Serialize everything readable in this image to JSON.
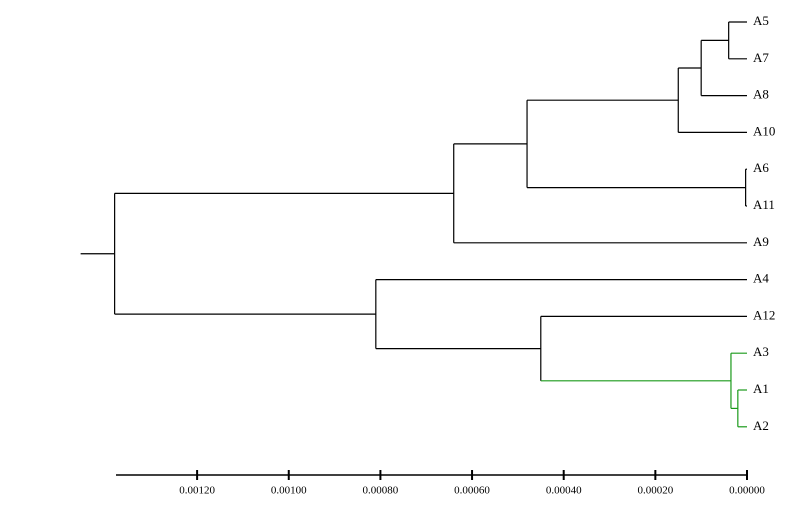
{
  "chart_data": {
    "type": "dendrogram",
    "orientation": "left",
    "color": "#000000",
    "leaves": [
      "A5",
      "A7",
      "A8",
      "A10",
      "A6",
      "A11",
      "A9",
      "A4",
      "A12",
      "A3",
      "A1",
      "A2"
    ],
    "merges": [
      {
        "children": [
          0,
          1
        ],
        "height": 4e-05
      },
      {
        "children": [
          12,
          2
        ],
        "height": 0.0001
      },
      {
        "children": [
          13,
          3
        ],
        "height": 0.00015
      },
      {
        "children": [
          4,
          5
        ],
        "height": 3e-06
      },
      {
        "children": [
          14,
          15
        ],
        "height": 0.00048
      },
      {
        "children": [
          16,
          6
        ],
        "height": 0.00064
      },
      {
        "children": [
          10,
          11
        ],
        "height": 2e-05,
        "color": "#1a9a1a"
      },
      {
        "children": [
          9,
          18
        ],
        "height": 3.5e-05,
        "color": "#1a9a1a"
      },
      {
        "children": [
          8,
          19
        ],
        "height": 0.00045
      },
      {
        "children": [
          7,
          20
        ],
        "height": 0.00081
      },
      {
        "children": [
          17,
          21
        ],
        "height": 0.00138
      }
    ],
    "xlim": [
      0.001377,
      0
    ],
    "xticks": [
      {
        "value": 0.0012,
        "label": "0.00120"
      },
      {
        "value": 0.001,
        "label": "0.00100"
      },
      {
        "value": 0.0008,
        "label": "0.00080"
      },
      {
        "value": 0.0006,
        "label": "0.00060"
      },
      {
        "value": 0.0004,
        "label": "0.00040"
      },
      {
        "value": 0.0002,
        "label": "0.00020"
      },
      {
        "value": 0,
        "label": "0.00000"
      }
    ]
  }
}
